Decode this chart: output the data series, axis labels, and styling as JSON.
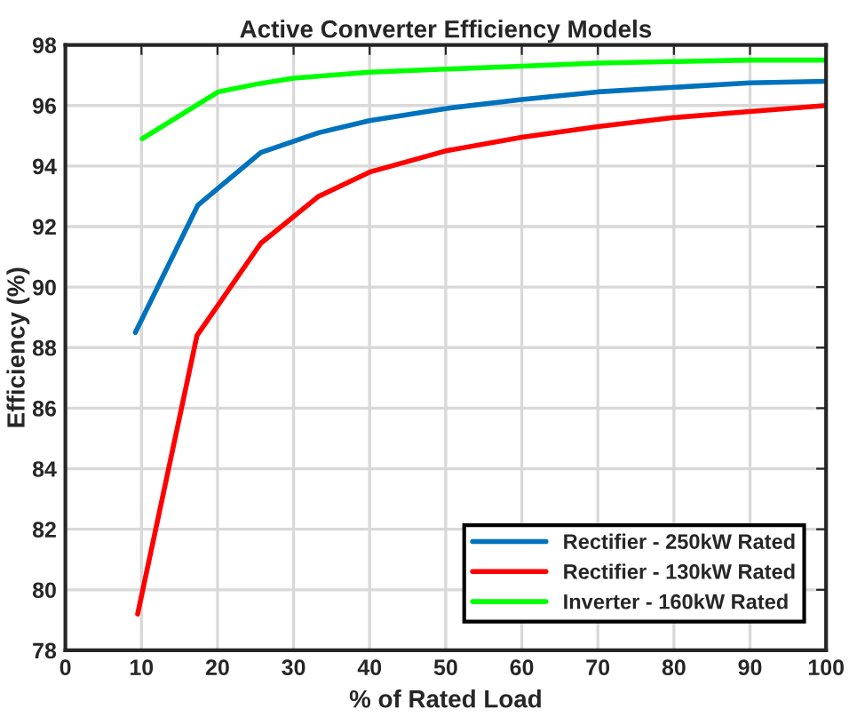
{
  "chart_data": {
    "type": "line",
    "title": "Active Converter Efficiency Models",
    "xlabel": "% of Rated Load",
    "ylabel": "Efficiency (%)",
    "xlim": [
      0,
      100
    ],
    "xticks": [
      0,
      10,
      20,
      30,
      40,
      50,
      60,
      70,
      80,
      90,
      100
    ],
    "ylim": [
      78,
      98
    ],
    "yticks": [
      78,
      80,
      82,
      84,
      86,
      88,
      90,
      92,
      94,
      96,
      98
    ],
    "grid": true,
    "legend": "bottom right",
    "series": [
      {
        "name": "Rectifier - 250kW Rated",
        "color": "#0072bd",
        "x": [
          9.2,
          17.4,
          25.7,
          33.3,
          40,
          50,
          60,
          70,
          80,
          90,
          100
        ],
        "values": [
          88.5,
          92.7,
          94.45,
          95.1,
          95.5,
          95.9,
          96.2,
          96.45,
          96.6,
          96.75,
          96.8
        ]
      },
      {
        "name": "Rectifier - 130kW Rated",
        "color": "#ff0000",
        "x": [
          9.5,
          17.3,
          25.7,
          33.3,
          40,
          50,
          60,
          70,
          80,
          90,
          100
        ],
        "values": [
          79.2,
          88.4,
          91.45,
          93.0,
          93.8,
          94.5,
          94.95,
          95.3,
          95.6,
          95.8,
          96.0
        ]
      },
      {
        "name": "Inverter - 160kW Rated",
        "color": "#00ff00",
        "x": [
          10.1,
          20.1,
          25,
          30,
          40,
          50,
          60,
          70,
          80,
          90,
          100
        ],
        "values": [
          94.9,
          96.45,
          96.7,
          96.9,
          97.1,
          97.2,
          97.3,
          97.4,
          97.45,
          97.5,
          97.5
        ]
      }
    ]
  }
}
